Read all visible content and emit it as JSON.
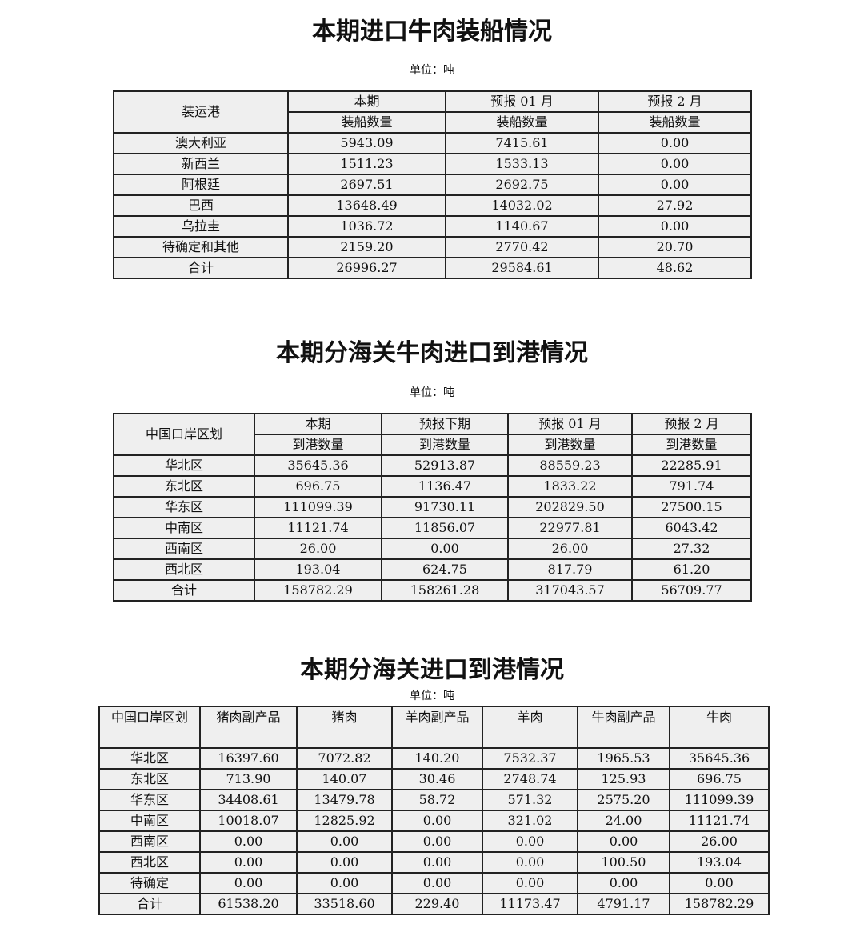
{
  "section1": {
    "title": "本期进口牛肉装船情况",
    "unit": "单位：吨",
    "header_top": [
      "装运港",
      "本期",
      "预报 01 月",
      "预报 2 月"
    ],
    "header_sub": [
      "装船数量",
      "装船数量",
      "装船数量"
    ],
    "rows": [
      [
        "澳大利亚",
        "5943.09",
        "7415.61",
        "0.00"
      ],
      [
        "新西兰",
        "1511.23",
        "1533.13",
        "0.00"
      ],
      [
        "阿根廷",
        "2697.51",
        "2692.75",
        "0.00"
      ],
      [
        "巴西",
        "13648.49",
        "14032.02",
        "27.92"
      ],
      [
        "乌拉圭",
        "1036.72",
        "1140.67",
        "0.00"
      ],
      [
        "待确定和其他",
        "2159.20",
        "2770.42",
        "20.70"
      ],
      [
        "合计",
        "26996.27",
        "29584.61",
        "48.62"
      ]
    ]
  },
  "section2": {
    "title": "本期分海关牛肉进口到港情况",
    "unit": "单位：吨",
    "header_top": [
      "中国口岸区划",
      "本期",
      "预报下期",
      "预报 01 月",
      "预报 2 月"
    ],
    "header_sub": [
      "到港数量",
      "到港数量",
      "到港数量",
      "到港数量"
    ],
    "rows": [
      [
        "华北区",
        "35645.36",
        "52913.87",
        "88559.23",
        "22285.91"
      ],
      [
        "东北区",
        "696.75",
        "1136.47",
        "1833.22",
        "791.74"
      ],
      [
        "华东区",
        "111099.39",
        "91730.11",
        "202829.50",
        "27500.15"
      ],
      [
        "中南区",
        "11121.74",
        "11856.07",
        "22977.81",
        "6043.42"
      ],
      [
        "西南区",
        "26.00",
        "0.00",
        "26.00",
        "27.32"
      ],
      [
        "西北区",
        "193.04",
        "624.75",
        "817.79",
        "61.20"
      ],
      [
        "合计",
        "158782.29",
        "158261.28",
        "317043.57",
        "56709.77"
      ]
    ]
  },
  "section3": {
    "title": "本期分海关进口到港情况",
    "unit": "单位：吨",
    "header": [
      "中国口岸区划",
      "猪肉副产品",
      "猪肉",
      "羊肉副产品",
      "羊肉",
      "牛肉副产品",
      "牛肉"
    ],
    "rows": [
      [
        "华北区",
        "16397.60",
        "7072.82",
        "140.20",
        "7532.37",
        "1965.53",
        "35645.36"
      ],
      [
        "东北区",
        "713.90",
        "140.07",
        "30.46",
        "2748.74",
        "125.93",
        "696.75"
      ],
      [
        "华东区",
        "34408.61",
        "13479.78",
        "58.72",
        "571.32",
        "2575.20",
        "111099.39"
      ],
      [
        "中南区",
        "10018.07",
        "12825.92",
        "0.00",
        "321.02",
        "24.00",
        "11121.74"
      ],
      [
        "西南区",
        "0.00",
        "0.00",
        "0.00",
        "0.00",
        "0.00",
        "26.00"
      ],
      [
        "西北区",
        "0.00",
        "0.00",
        "0.00",
        "0.00",
        "100.50",
        "193.04"
      ],
      [
        "待确定",
        "0.00",
        "0.00",
        "0.00",
        "0.00",
        "0.00",
        "0.00"
      ],
      [
        "合计",
        "61538.20",
        "33518.60",
        "229.40",
        "11173.47",
        "4791.17",
        "158782.29"
      ]
    ]
  }
}
